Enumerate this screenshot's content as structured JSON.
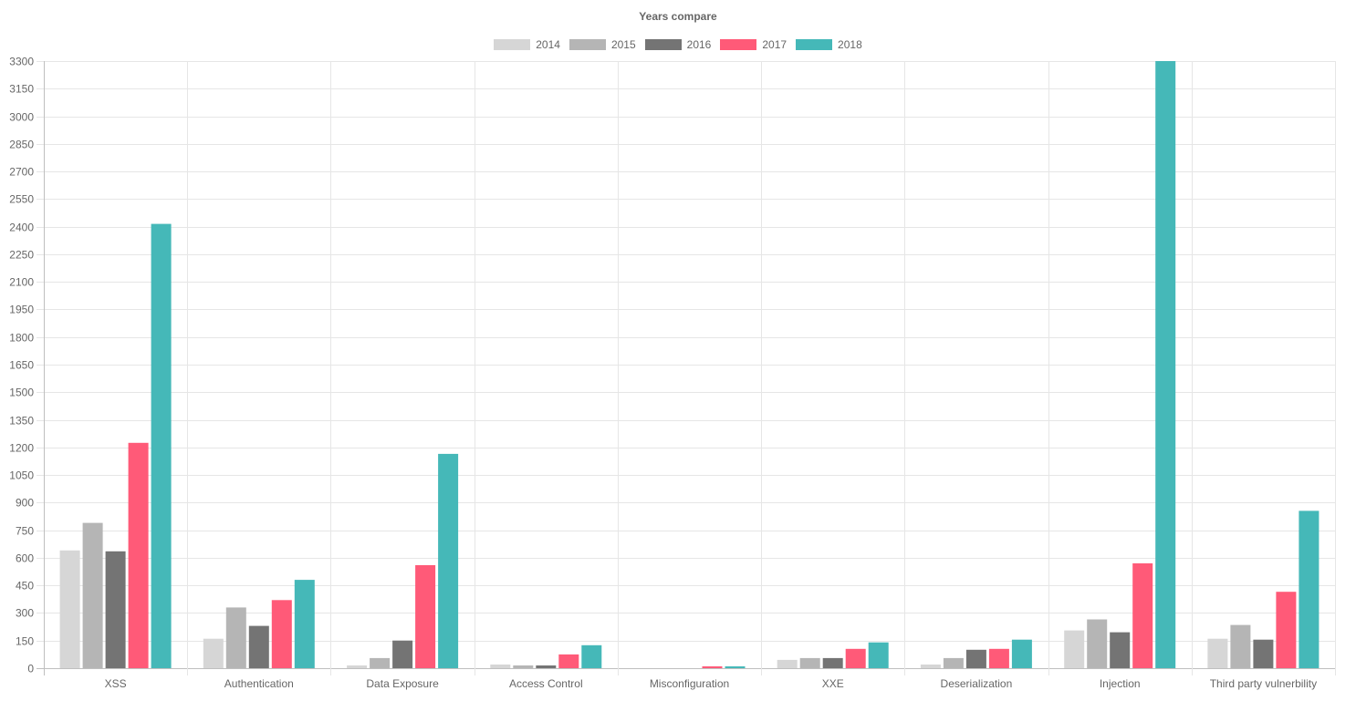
{
  "chart_data": {
    "type": "bar",
    "title": "Years compare",
    "categories": [
      "XSS",
      "Authentication",
      "Data Exposure",
      "Access Control",
      "Misconfiguration",
      "XXE",
      "Deserialization",
      "Injection",
      "Third party vulnerbility"
    ],
    "series": [
      {
        "name": "2014",
        "color": "#d6d6d6",
        "values": [
          640,
          160,
          15,
          20,
          0,
          45,
          20,
          205,
          160
        ]
      },
      {
        "name": "2015",
        "color": "#b5b5b5",
        "values": [
          790,
          330,
          55,
          15,
          0,
          55,
          55,
          265,
          235
        ]
      },
      {
        "name": "2016",
        "color": "#747474",
        "values": [
          635,
          230,
          150,
          15,
          0,
          55,
          100,
          195,
          155
        ]
      },
      {
        "name": "2017",
        "color": "#ff5a78",
        "values": [
          1225,
          370,
          560,
          75,
          10,
          105,
          105,
          570,
          415
        ]
      },
      {
        "name": "2018",
        "color": "#45b8b8",
        "values": [
          2415,
          480,
          1165,
          125,
          10,
          140,
          155,
          3300,
          855
        ]
      }
    ],
    "xlabel": "",
    "ylabel": "",
    "ylim": [
      0,
      3300
    ],
    "yticks": [
      0,
      150,
      300,
      450,
      600,
      750,
      900,
      1050,
      1200,
      1350,
      1500,
      1650,
      1800,
      1950,
      2100,
      2250,
      2400,
      2550,
      2700,
      2850,
      3000,
      3150,
      3300
    ],
    "grid": true,
    "legend_position": "top"
  }
}
